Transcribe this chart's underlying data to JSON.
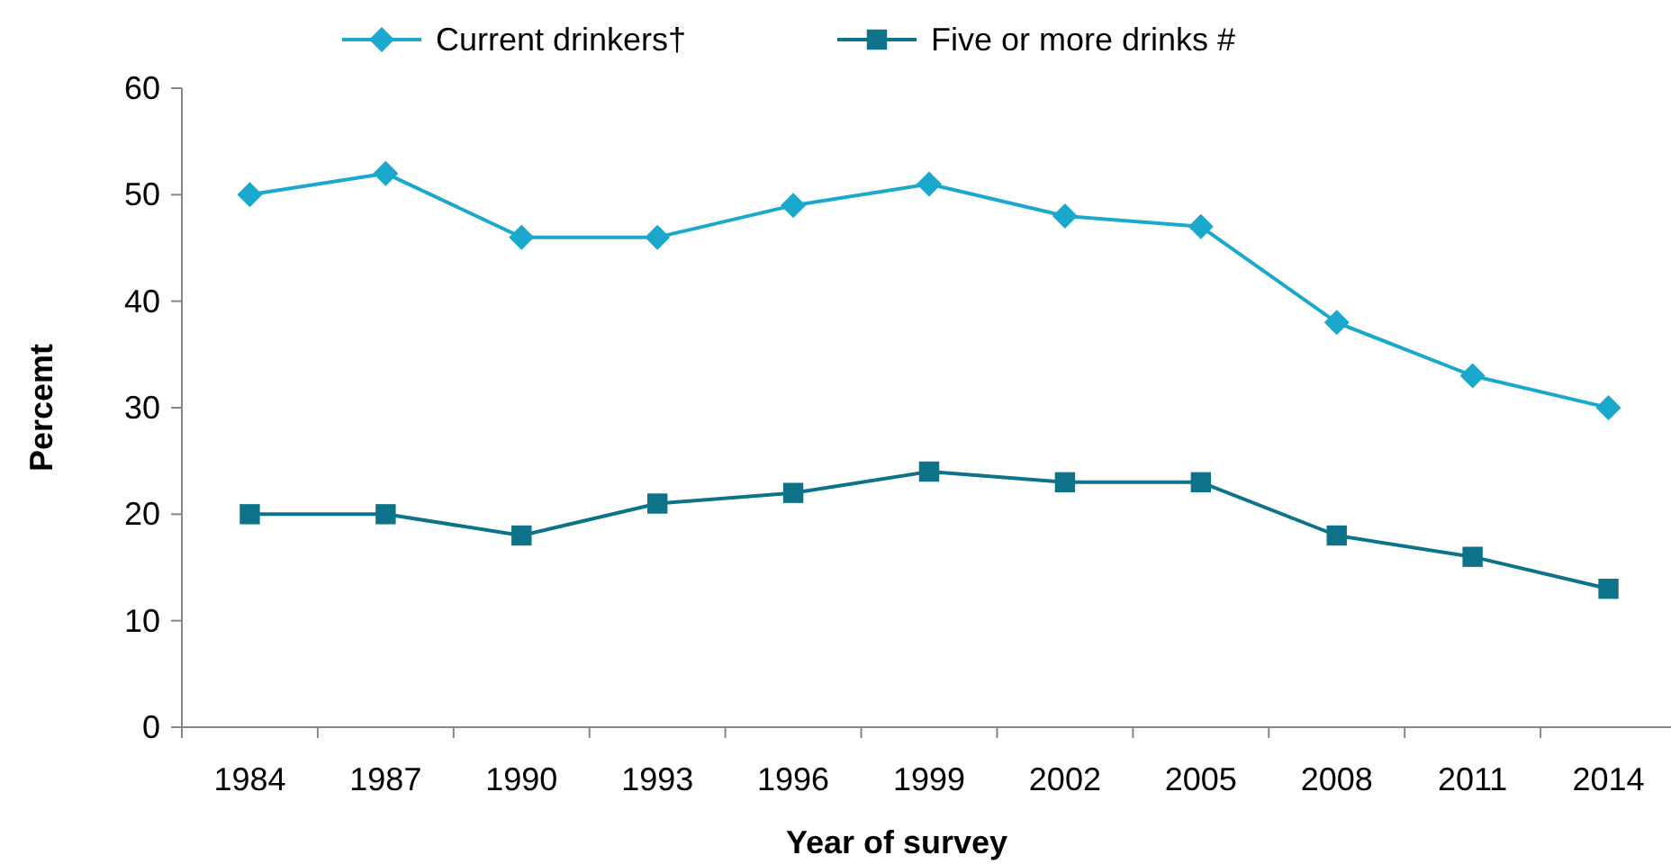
{
  "chart_data": {
    "type": "line",
    "xlabel": "Year of survey",
    "ylabel": "Percemt",
    "categories": [
      "1984",
      "1987",
      "1990",
      "1993",
      "1996",
      "1999",
      "2002",
      "2005",
      "2008",
      "2011",
      "2014"
    ],
    "series": [
      {
        "name": "Current drinkers†",
        "color": "#1aa8cc",
        "marker": "diamond",
        "values": [
          50,
          52,
          46,
          46,
          49,
          51,
          48,
          47,
          38,
          33,
          30
        ]
      },
      {
        "name": "Five or more drinks #",
        "color": "#0e7388",
        "marker": "square",
        "values": [
          20,
          20,
          18,
          21,
          22,
          24,
          23,
          23,
          18,
          16,
          13
        ]
      }
    ],
    "ylim": [
      0,
      60
    ],
    "yticks": [
      0,
      10,
      20,
      30,
      40,
      50,
      60
    ],
    "grid": false,
    "legend": "top"
  }
}
